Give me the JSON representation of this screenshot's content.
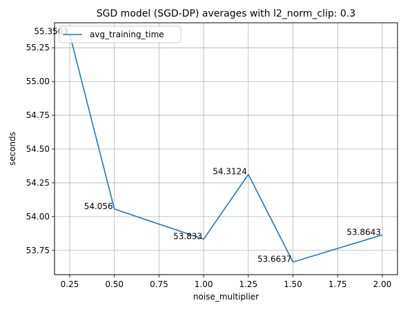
{
  "chart_data": {
    "type": "line",
    "title": "SGD model (SGD-DP) averages with l2_norm_clip: 0.3",
    "xlabel": "noise_multiplier",
    "ylabel": "seconds",
    "x": [
      0.25,
      0.5,
      1.0,
      1.25,
      1.5,
      2.0
    ],
    "series": [
      {
        "name": "avg_training_time",
        "color": "#1f77b4",
        "values": [
          55.3503,
          54.056,
          53.833,
          54.3124,
          53.6637,
          53.8643
        ],
        "labels": [
          "55.3503",
          "54.056",
          "53.833",
          "54.3124",
          "53.6637",
          "53.8643"
        ]
      }
    ],
    "xlim": [
      0.165,
      2.085
    ],
    "ylim": [
      53.57,
      55.435
    ],
    "x_ticks": [
      0.25,
      0.5,
      0.75,
      1.0,
      1.25,
      1.5,
      1.75,
      2.0
    ],
    "x_tick_labels": [
      "0.25",
      "0.50",
      "0.75",
      "1.00",
      "1.25",
      "1.50",
      "1.75",
      "2.00"
    ],
    "y_ticks": [
      53.75,
      54.0,
      54.25,
      54.5,
      54.75,
      55.0,
      55.25
    ],
    "y_tick_labels": [
      "53.75",
      "54.00",
      "54.25",
      "54.50",
      "54.75",
      "55.00",
      "55.25"
    ],
    "grid": true,
    "legend_position": "top-left"
  }
}
